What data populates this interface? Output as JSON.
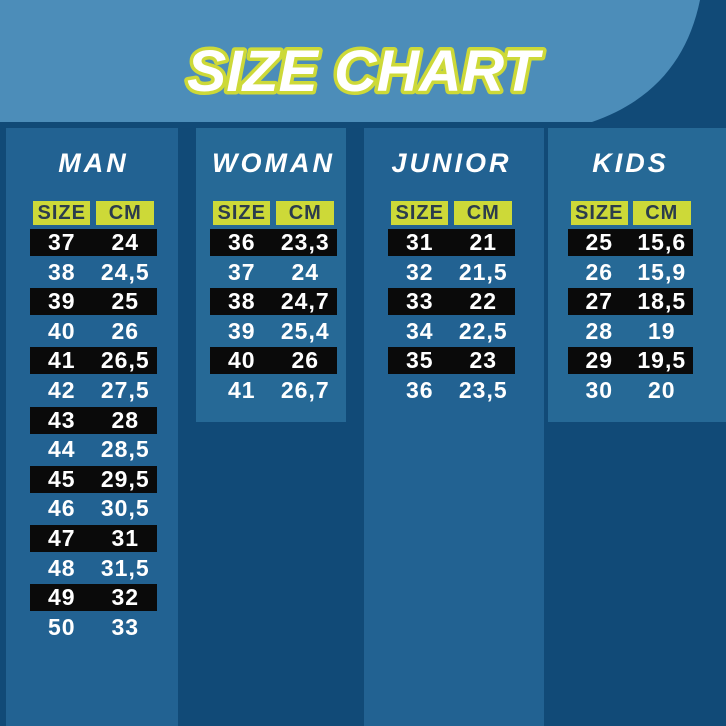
{
  "banner": {
    "title": "SIZE CHART"
  },
  "colors": {
    "bg": "#114a77",
    "panel": "#226292",
    "panel-alt": "#266996",
    "banner": "#4c8db9",
    "accent": "#cdd938",
    "chip-text": "#2b3c4c",
    "bar": "#0a0a0a",
    "text": "#ffffff"
  },
  "columns": [
    {
      "title": "MAN",
      "size_label": "SIZE",
      "cm_label": "CM",
      "rows": [
        {
          "size": "37",
          "cm": "24",
          "highlight": true
        },
        {
          "size": "38",
          "cm": "24,5",
          "highlight": false
        },
        {
          "size": "39",
          "cm": "25",
          "highlight": true
        },
        {
          "size": "40",
          "cm": "26",
          "highlight": false
        },
        {
          "size": "41",
          "cm": "26,5",
          "highlight": true
        },
        {
          "size": "42",
          "cm": "27,5",
          "highlight": false
        },
        {
          "size": "43",
          "cm": "28",
          "highlight": true
        },
        {
          "size": "44",
          "cm": "28,5",
          "highlight": false
        },
        {
          "size": "45",
          "cm": "29,5",
          "highlight": true
        },
        {
          "size": "46",
          "cm": "30,5",
          "highlight": false
        },
        {
          "size": "47",
          "cm": "31",
          "highlight": true
        },
        {
          "size": "48",
          "cm": "31,5",
          "highlight": false
        },
        {
          "size": "49",
          "cm": "32",
          "highlight": true
        },
        {
          "size": "50",
          "cm": "33",
          "highlight": false
        }
      ]
    },
    {
      "title": "WOMAN",
      "size_label": "SIZE",
      "cm_label": "CM",
      "rows": [
        {
          "size": "36",
          "cm": "23,3",
          "highlight": true
        },
        {
          "size": "37",
          "cm": "24",
          "highlight": false
        },
        {
          "size": "38",
          "cm": "24,7",
          "highlight": true
        },
        {
          "size": "39",
          "cm": "25,4",
          "highlight": false
        },
        {
          "size": "40",
          "cm": "26",
          "highlight": true
        },
        {
          "size": "41",
          "cm": "26,7",
          "highlight": false
        }
      ]
    },
    {
      "title": "JUNIOR",
      "size_label": "SIZE",
      "cm_label": "CM",
      "rows": [
        {
          "size": "31",
          "cm": "21",
          "highlight": true
        },
        {
          "size": "32",
          "cm": "21,5",
          "highlight": false
        },
        {
          "size": "33",
          "cm": "22",
          "highlight": true
        },
        {
          "size": "34",
          "cm": "22,5",
          "highlight": false
        },
        {
          "size": "35",
          "cm": "23",
          "highlight": true
        },
        {
          "size": "36",
          "cm": "23,5",
          "highlight": false
        }
      ]
    },
    {
      "title": "KIDS",
      "size_label": "SIZE",
      "cm_label": "CM",
      "rows": [
        {
          "size": "25",
          "cm": "15,6",
          "highlight": true
        },
        {
          "size": "26",
          "cm": "15,9",
          "highlight": false
        },
        {
          "size": "27",
          "cm": "18,5",
          "highlight": true
        },
        {
          "size": "28",
          "cm": "19",
          "highlight": false
        },
        {
          "size": "29",
          "cm": "19,5",
          "highlight": true
        },
        {
          "size": "30",
          "cm": "20",
          "highlight": false
        }
      ]
    }
  ]
}
